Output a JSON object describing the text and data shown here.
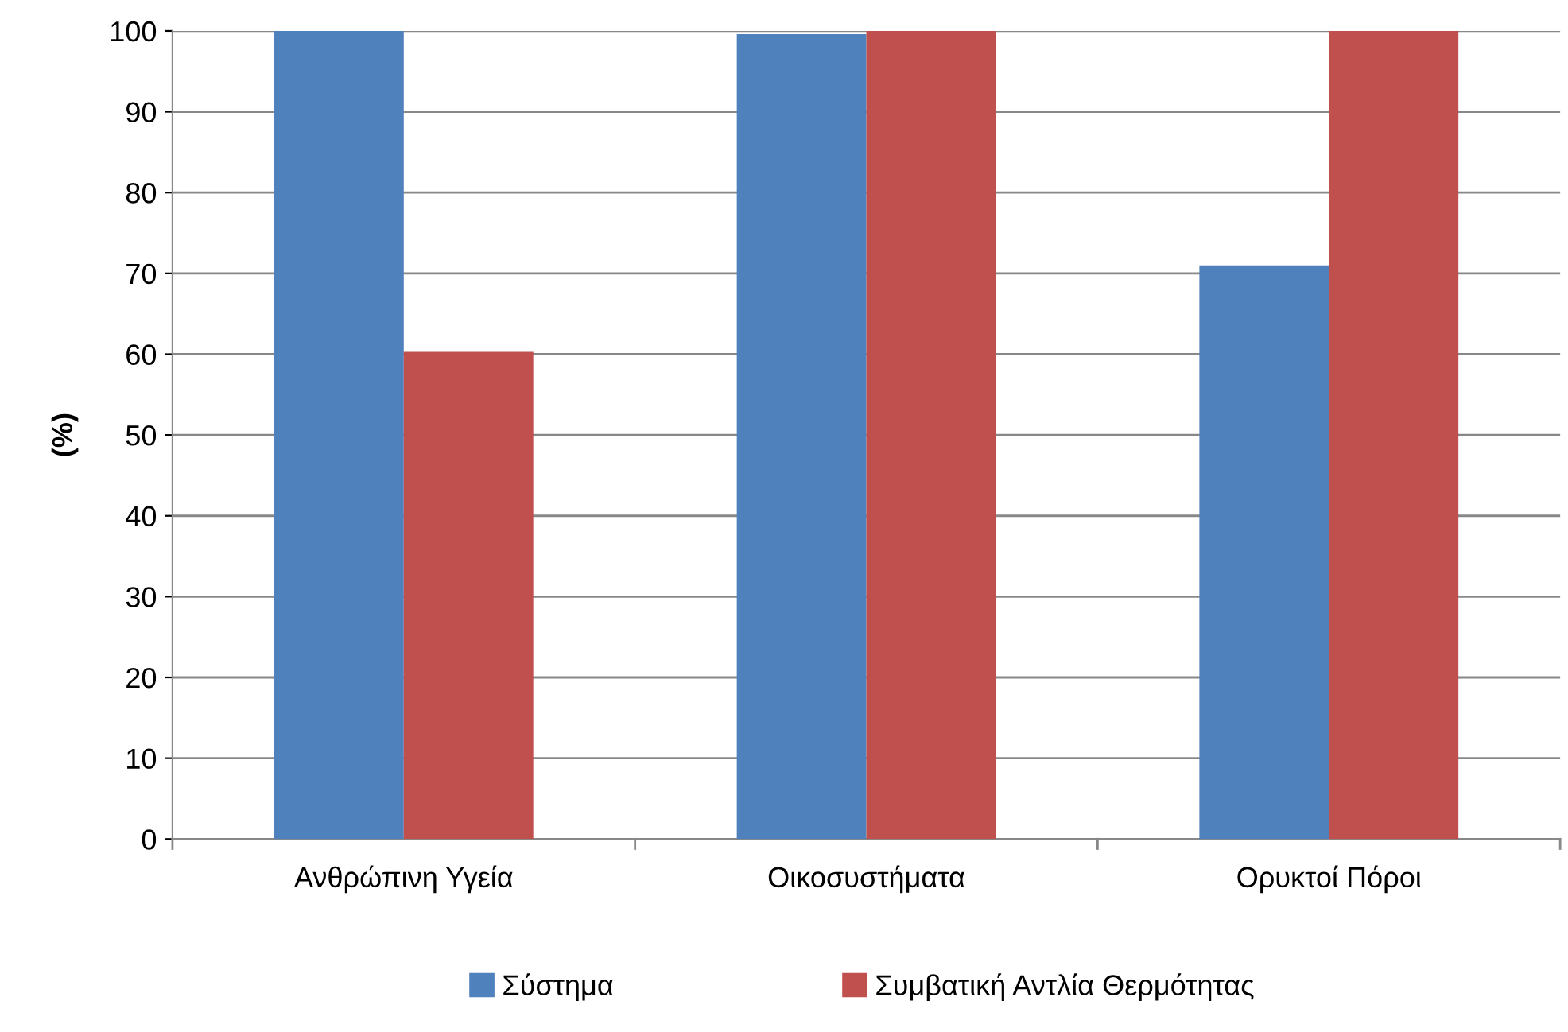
{
  "chart_data": {
    "type": "bar",
    "ylabel": "(%)",
    "categories": [
      "Ανθρώπινη Υγεία",
      "Οικοσυστήματα",
      "Ορυκτοί Πόροι"
    ],
    "series": [
      {
        "name": "Σύστημα",
        "color": "#4f81bd",
        "values": [
          100,
          99.6,
          71
        ]
      },
      {
        "name": "Συμβατική Αντλία Θερμότητας",
        "color": "#c0504d",
        "values": [
          60.3,
          100,
          100
        ]
      }
    ],
    "ylim": [
      0,
      100
    ],
    "yticks": [
      0,
      10,
      20,
      30,
      40,
      50,
      60,
      70,
      80,
      90,
      100
    ],
    "grid": "y",
    "legend": "bottom"
  }
}
